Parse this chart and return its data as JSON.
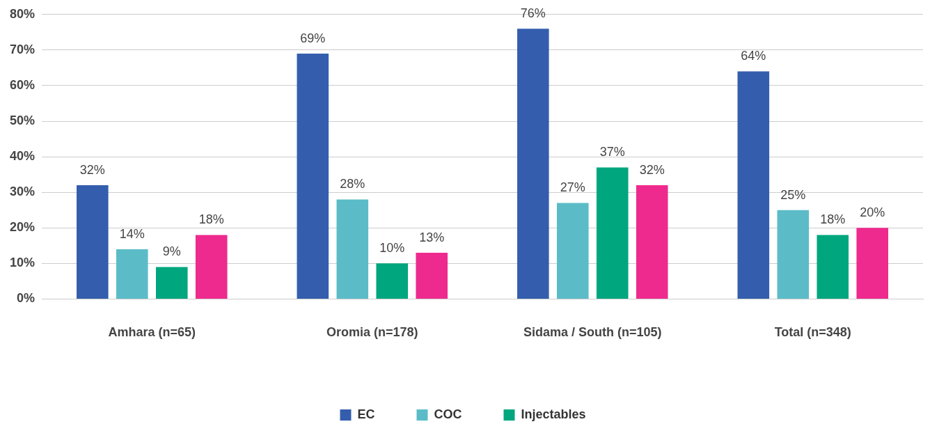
{
  "chart_data": {
    "type": "bar",
    "categories": [
      "Amhara (n=65)",
      "Oromia (n=178)",
      "Sidama / South (n=105)",
      "Total (n=348)"
    ],
    "series": [
      {
        "name": "EC",
        "color": "#345ead",
        "values": [
          32,
          69,
          76,
          64
        ],
        "value_labels": [
          "32%",
          "69%",
          "76%",
          "64%"
        ]
      },
      {
        "name": "COC",
        "color": "#5bbcc8",
        "values": [
          14,
          28,
          27,
          25
        ],
        "value_labels": [
          "14%",
          "28%",
          "27%",
          "25%"
        ]
      },
      {
        "name": "Injectables",
        "color": "#00a67e",
        "values": [
          9,
          10,
          37,
          18
        ],
        "value_labels": [
          "9%",
          "10%",
          "37%",
          "18%"
        ]
      },
      {
        "color": "#ee2a8e",
        "values": [
          18,
          13,
          32,
          20
        ],
        "value_labels": [
          "18%",
          "13%",
          "32%",
          "20%"
        ]
      }
    ],
    "ylim": [
      0,
      80
    ],
    "yticks": [
      {
        "value": 0,
        "label": "0%"
      },
      {
        "value": 10,
        "label": "10%"
      },
      {
        "value": 20,
        "label": "20%"
      },
      {
        "value": 30,
        "label": "30%"
      },
      {
        "value": 40,
        "label": "40%"
      },
      {
        "value": 50,
        "label": "50%"
      },
      {
        "value": 60,
        "label": "60%"
      },
      {
        "value": 70,
        "label": "70%"
      },
      {
        "value": 80,
        "label": "80%"
      }
    ],
    "grid": "y",
    "legend": "bottom"
  }
}
